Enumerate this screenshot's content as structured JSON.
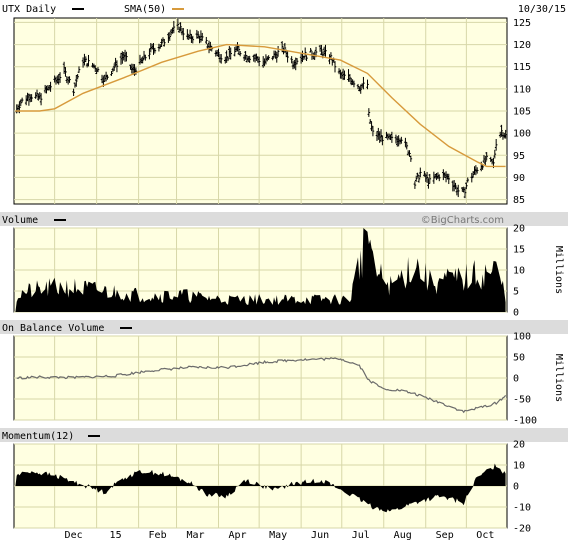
{
  "header": {
    "ticker_label": "UTX Daily",
    "sma_label": "SMA(50)",
    "date": "10/30/15"
  },
  "watermark": "©BigCharts.com",
  "colors": {
    "panel_bg": "#ffffe1",
    "grid": "#d7d7a8",
    "header_bar": "#dcdcdc",
    "sma": "#d79a3c",
    "price": "#000000",
    "volume": "#000000",
    "obv": "#6b6b6b",
    "momentum": "#000000"
  },
  "x_axis": {
    "tick_labels": [
      "Dec",
      "15",
      "Feb",
      "Mar",
      "Apr",
      "May",
      "Jun",
      "Jul",
      "Aug",
      "Sep",
      "Oct"
    ]
  },
  "chart_data": [
    {
      "type": "ohlc",
      "name": "UTX Daily",
      "overlay": "SMA(50)",
      "y_ticks": [
        85,
        90,
        95,
        100,
        105,
        110,
        115,
        120,
        125
      ],
      "ylim": [
        84,
        126
      ],
      "price_points": [
        [
          "Nov 2",
          105.0
        ],
        [
          "Nov 6",
          107.0
        ],
        [
          "Nov 13",
          108.5
        ],
        [
          "Nov 20",
          108.0
        ],
        [
          "Nov 26",
          110.0
        ],
        [
          "Dec 1",
          111.5
        ],
        [
          "Dec 8",
          114.0
        ],
        [
          "Dec 15",
          110.0
        ],
        [
          "Dec 22",
          116.5
        ],
        [
          "Dec 31",
          115.0
        ],
        [
          "Jan 7",
          112.0
        ],
        [
          "Jan 14",
          115.0
        ],
        [
          "Jan 21",
          117.5
        ],
        [
          "Jan 28",
          114.0
        ],
        [
          "Feb 4",
          116.5
        ],
        [
          "Feb 11",
          119.0
        ],
        [
          "Feb 18",
          120.0
        ],
        [
          "Feb 25",
          123.0
        ],
        [
          "Mar 3",
          124.0
        ],
        [
          "Mar 10",
          121.5
        ],
        [
          "Mar 17",
          122.0
        ],
        [
          "Mar 24",
          120.0
        ],
        [
          "Mar 31",
          118.0
        ],
        [
          "Apr 7",
          117.0
        ],
        [
          "Apr 14",
          119.0
        ],
        [
          "Apr 21",
          117.5
        ],
        [
          "Apr 28",
          117.0
        ],
        [
          "May 5",
          116.0
        ],
        [
          "May 12",
          117.5
        ],
        [
          "May 19",
          119.0
        ],
        [
          "May 26",
          116.0
        ],
        [
          "Jun 2",
          117.5
        ],
        [
          "Jun 9",
          118.0
        ],
        [
          "Jun 16",
          118.5
        ],
        [
          "Jun 23",
          117.0
        ],
        [
          "Jun 30",
          113.0
        ],
        [
          "Jul 7",
          112.5
        ],
        [
          "Jul 14",
          110.5
        ],
        [
          "Jul 20",
          111.0
        ],
        [
          "Jul 21",
          104.0
        ],
        [
          "Jul 24",
          100.0
        ],
        [
          "Jul 31",
          99.0
        ],
        [
          "Aug 7",
          98.5
        ],
        [
          "Aug 14",
          99.0
        ],
        [
          "Aug 21",
          95.0
        ],
        [
          "Aug 24",
          88.5
        ],
        [
          "Aug 28",
          91.0
        ],
        [
          "Sep 4",
          89.0
        ],
        [
          "Sep 11",
          90.5
        ],
        [
          "Sep 18",
          90.0
        ],
        [
          "Sep 25",
          87.0
        ],
        [
          "Sep 29",
          86.5
        ],
        [
          "Oct 2",
          89.0
        ],
        [
          "Oct 9",
          92.0
        ],
        [
          "Oct 16",
          94.0
        ],
        [
          "Oct 21",
          93.0
        ],
        [
          "Oct 23",
          98.0
        ],
        [
          "Oct 27",
          100.5
        ],
        [
          "Oct 30",
          99.5
        ]
      ],
      "sma_points": [
        [
          "Nov 2",
          105.0
        ],
        [
          "Nov 20",
          105.0
        ],
        [
          "Dec 1",
          105.5
        ],
        [
          "Dec 22",
          109.0
        ],
        [
          "Jan 21",
          112.5
        ],
        [
          "Feb 18",
          116.0
        ],
        [
          "Mar 17",
          118.5
        ],
        [
          "Apr 7",
          120.0
        ],
        [
          "May 5",
          119.5
        ],
        [
          "Jun 2",
          118.0
        ],
        [
          "Jun 30",
          116.5
        ],
        [
          "Jul 20",
          113.5
        ],
        [
          "Aug 7",
          108.0
        ],
        [
          "Aug 28",
          102.0
        ],
        [
          "Sep 18",
          97.0
        ],
        [
          "Oct 9",
          93.5
        ],
        [
          "Oct 16",
          92.5
        ],
        [
          "Oct 30",
          92.5
        ]
      ]
    },
    {
      "type": "area",
      "name": "Volume",
      "unit": "Millions",
      "y_ticks": [
        0,
        5,
        10,
        15,
        20
      ],
      "ylim": [
        0,
        20
      ],
      "points": [
        [
          "Nov 2",
          4
        ],
        [
          "Nov 13",
          5
        ],
        [
          "Dec 8",
          6
        ],
        [
          "Jan 7",
          5
        ],
        [
          "Feb 4",
          4
        ],
        [
          "Mar 3",
          4
        ],
        [
          "Apr 7",
          3
        ],
        [
          "May 5",
          3
        ],
        [
          "Jun 2",
          3
        ],
        [
          "Jul 7",
          3
        ],
        [
          "Jul 21",
          20
        ],
        [
          "Jul 24",
          10
        ],
        [
          "Aug 7",
          6
        ],
        [
          "Aug 24",
          12
        ],
        [
          "Sep 4",
          7
        ],
        [
          "Sep 29",
          8
        ],
        [
          "Oct 23",
          10
        ],
        [
          "Oct 30",
          4
        ]
      ]
    },
    {
      "type": "line",
      "name": "On Balance Volume",
      "unit": "Millions",
      "y_ticks": [
        -100,
        -50,
        0,
        50,
        100
      ],
      "ylim": [
        -100,
        100
      ],
      "points": [
        [
          "Nov 2",
          0
        ],
        [
          "Nov 20",
          2
        ],
        [
          "Dec 15",
          1
        ],
        [
          "Jan 14",
          5
        ],
        [
          "Feb 11",
          18
        ],
        [
          "Mar 10",
          25
        ],
        [
          "Apr 7",
          25
        ],
        [
          "May 5",
          38
        ],
        [
          "Jun 2",
          44
        ],
        [
          "Jun 30",
          46
        ],
        [
          "Jul 14",
          30
        ],
        [
          "Jul 21",
          -5
        ],
        [
          "Jul 31",
          -25
        ],
        [
          "Aug 14",
          -30
        ],
        [
          "Aug 24",
          -38
        ],
        [
          "Sep 11",
          -58
        ],
        [
          "Sep 29",
          -80
        ],
        [
          "Oct 9",
          -72
        ],
        [
          "Oct 23",
          -60
        ],
        [
          "Oct 30",
          -42
        ]
      ]
    },
    {
      "type": "area",
      "name": "Momentum(12)",
      "y_ticks": [
        -20,
        -10,
        0,
        10,
        20
      ],
      "ylim": [
        -20,
        20
      ],
      "points": [
        [
          "Nov 2",
          5
        ],
        [
          "Nov 13",
          7
        ],
        [
          "Dec 1",
          5
        ],
        [
          "Dec 15",
          2
        ],
        [
          "Jan 7",
          -3
        ],
        [
          "Jan 21",
          4
        ],
        [
          "Feb 4",
          7
        ],
        [
          "Feb 18",
          6
        ],
        [
          "Mar 10",
          2
        ],
        [
          "Mar 24",
          -4
        ],
        [
          "Apr 7",
          -5
        ],
        [
          "Apr 21",
          3
        ],
        [
          "May 12",
          -2
        ],
        [
          "May 26",
          1
        ],
        [
          "Jun 16",
          3
        ],
        [
          "Jul 7",
          -4
        ],
        [
          "Jul 24",
          -10
        ],
        [
          "Aug 7",
          -12
        ],
        [
          "Aug 24",
          -8
        ],
        [
          "Sep 11",
          -5
        ],
        [
          "Sep 29",
          -8
        ],
        [
          "Oct 9",
          4
        ],
        [
          "Oct 23",
          10
        ],
        [
          "Oct 30",
          6
        ]
      ]
    }
  ]
}
